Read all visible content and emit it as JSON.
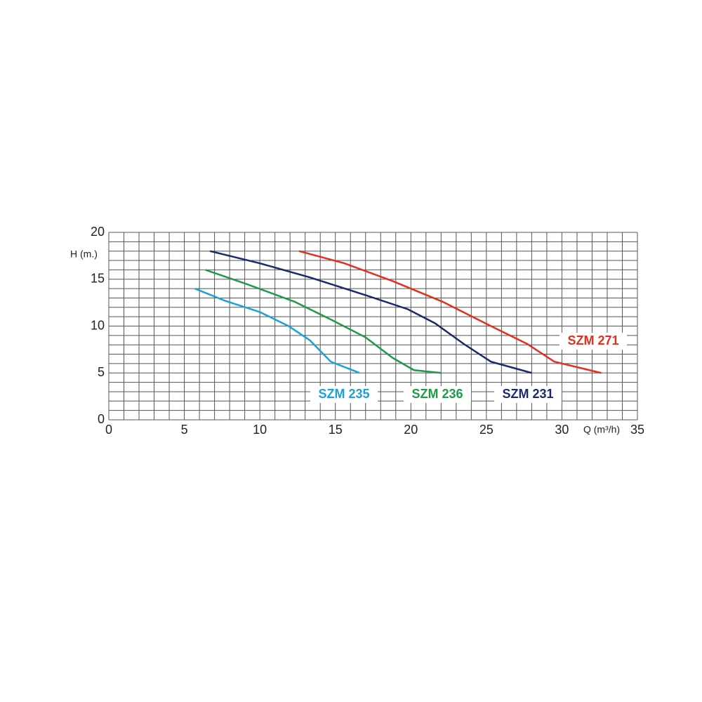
{
  "chart_data": {
    "type": "line",
    "x_label": "Q (m³/h)",
    "y_label": "H (m.)",
    "xlim": [
      0,
      35
    ],
    "ylim": [
      0,
      20
    ],
    "xticks": [
      0,
      5,
      10,
      15,
      20,
      25,
      30,
      35
    ],
    "yticks": [
      0,
      5,
      10,
      15,
      20
    ],
    "xgrid": [
      0,
      1,
      2,
      3,
      4,
      5,
      6,
      7,
      8,
      9,
      10,
      11,
      12,
      13,
      14,
      15,
      16,
      17,
      18,
      19,
      20,
      21,
      22,
      23,
      24,
      25,
      26,
      27,
      28,
      29,
      30,
      31,
      32,
      33,
      34,
      35
    ],
    "ygrid": [
      0,
      1,
      2,
      3,
      4,
      5,
      6,
      7,
      8,
      9,
      10,
      11,
      12,
      13,
      14,
      15,
      16,
      17,
      18,
      19,
      20
    ],
    "grid": true,
    "series": [
      {
        "name": "SZM 235",
        "color": "#1ba0dc",
        "x": [
          5.7,
          7.7,
          10,
          11.9,
          13.3,
          14.7,
          16.6
        ],
        "values": [
          14,
          12.7,
          11.5,
          10,
          8.5,
          6.2,
          5
        ]
      },
      {
        "name": "SZM 236",
        "color": "#1e9a48",
        "x": [
          6.4,
          9.1,
          12.3,
          14.7,
          17,
          18.8,
          20.2,
          22
        ],
        "values": [
          16,
          14.5,
          12.6,
          10.7,
          8.8,
          6.6,
          5.3,
          5
        ]
      },
      {
        "name": "SZM 231",
        "color": "#1a2a6c",
        "x": [
          6.7,
          10,
          13.3,
          17,
          19.8,
          21.6,
          23.5,
          25.3,
          28
        ],
        "values": [
          18,
          16.7,
          15.2,
          13.3,
          11.8,
          10.3,
          8.1,
          6.2,
          5
        ]
      },
      {
        "name": "SZM 271",
        "color": "#e3301f",
        "x": [
          12.6,
          15.6,
          18.8,
          22.1,
          25.3,
          27.7,
          29.5,
          32.6
        ],
        "values": [
          18,
          16.7,
          14.8,
          12.6,
          10,
          8.1,
          6.2,
          5
        ]
      }
    ]
  }
}
